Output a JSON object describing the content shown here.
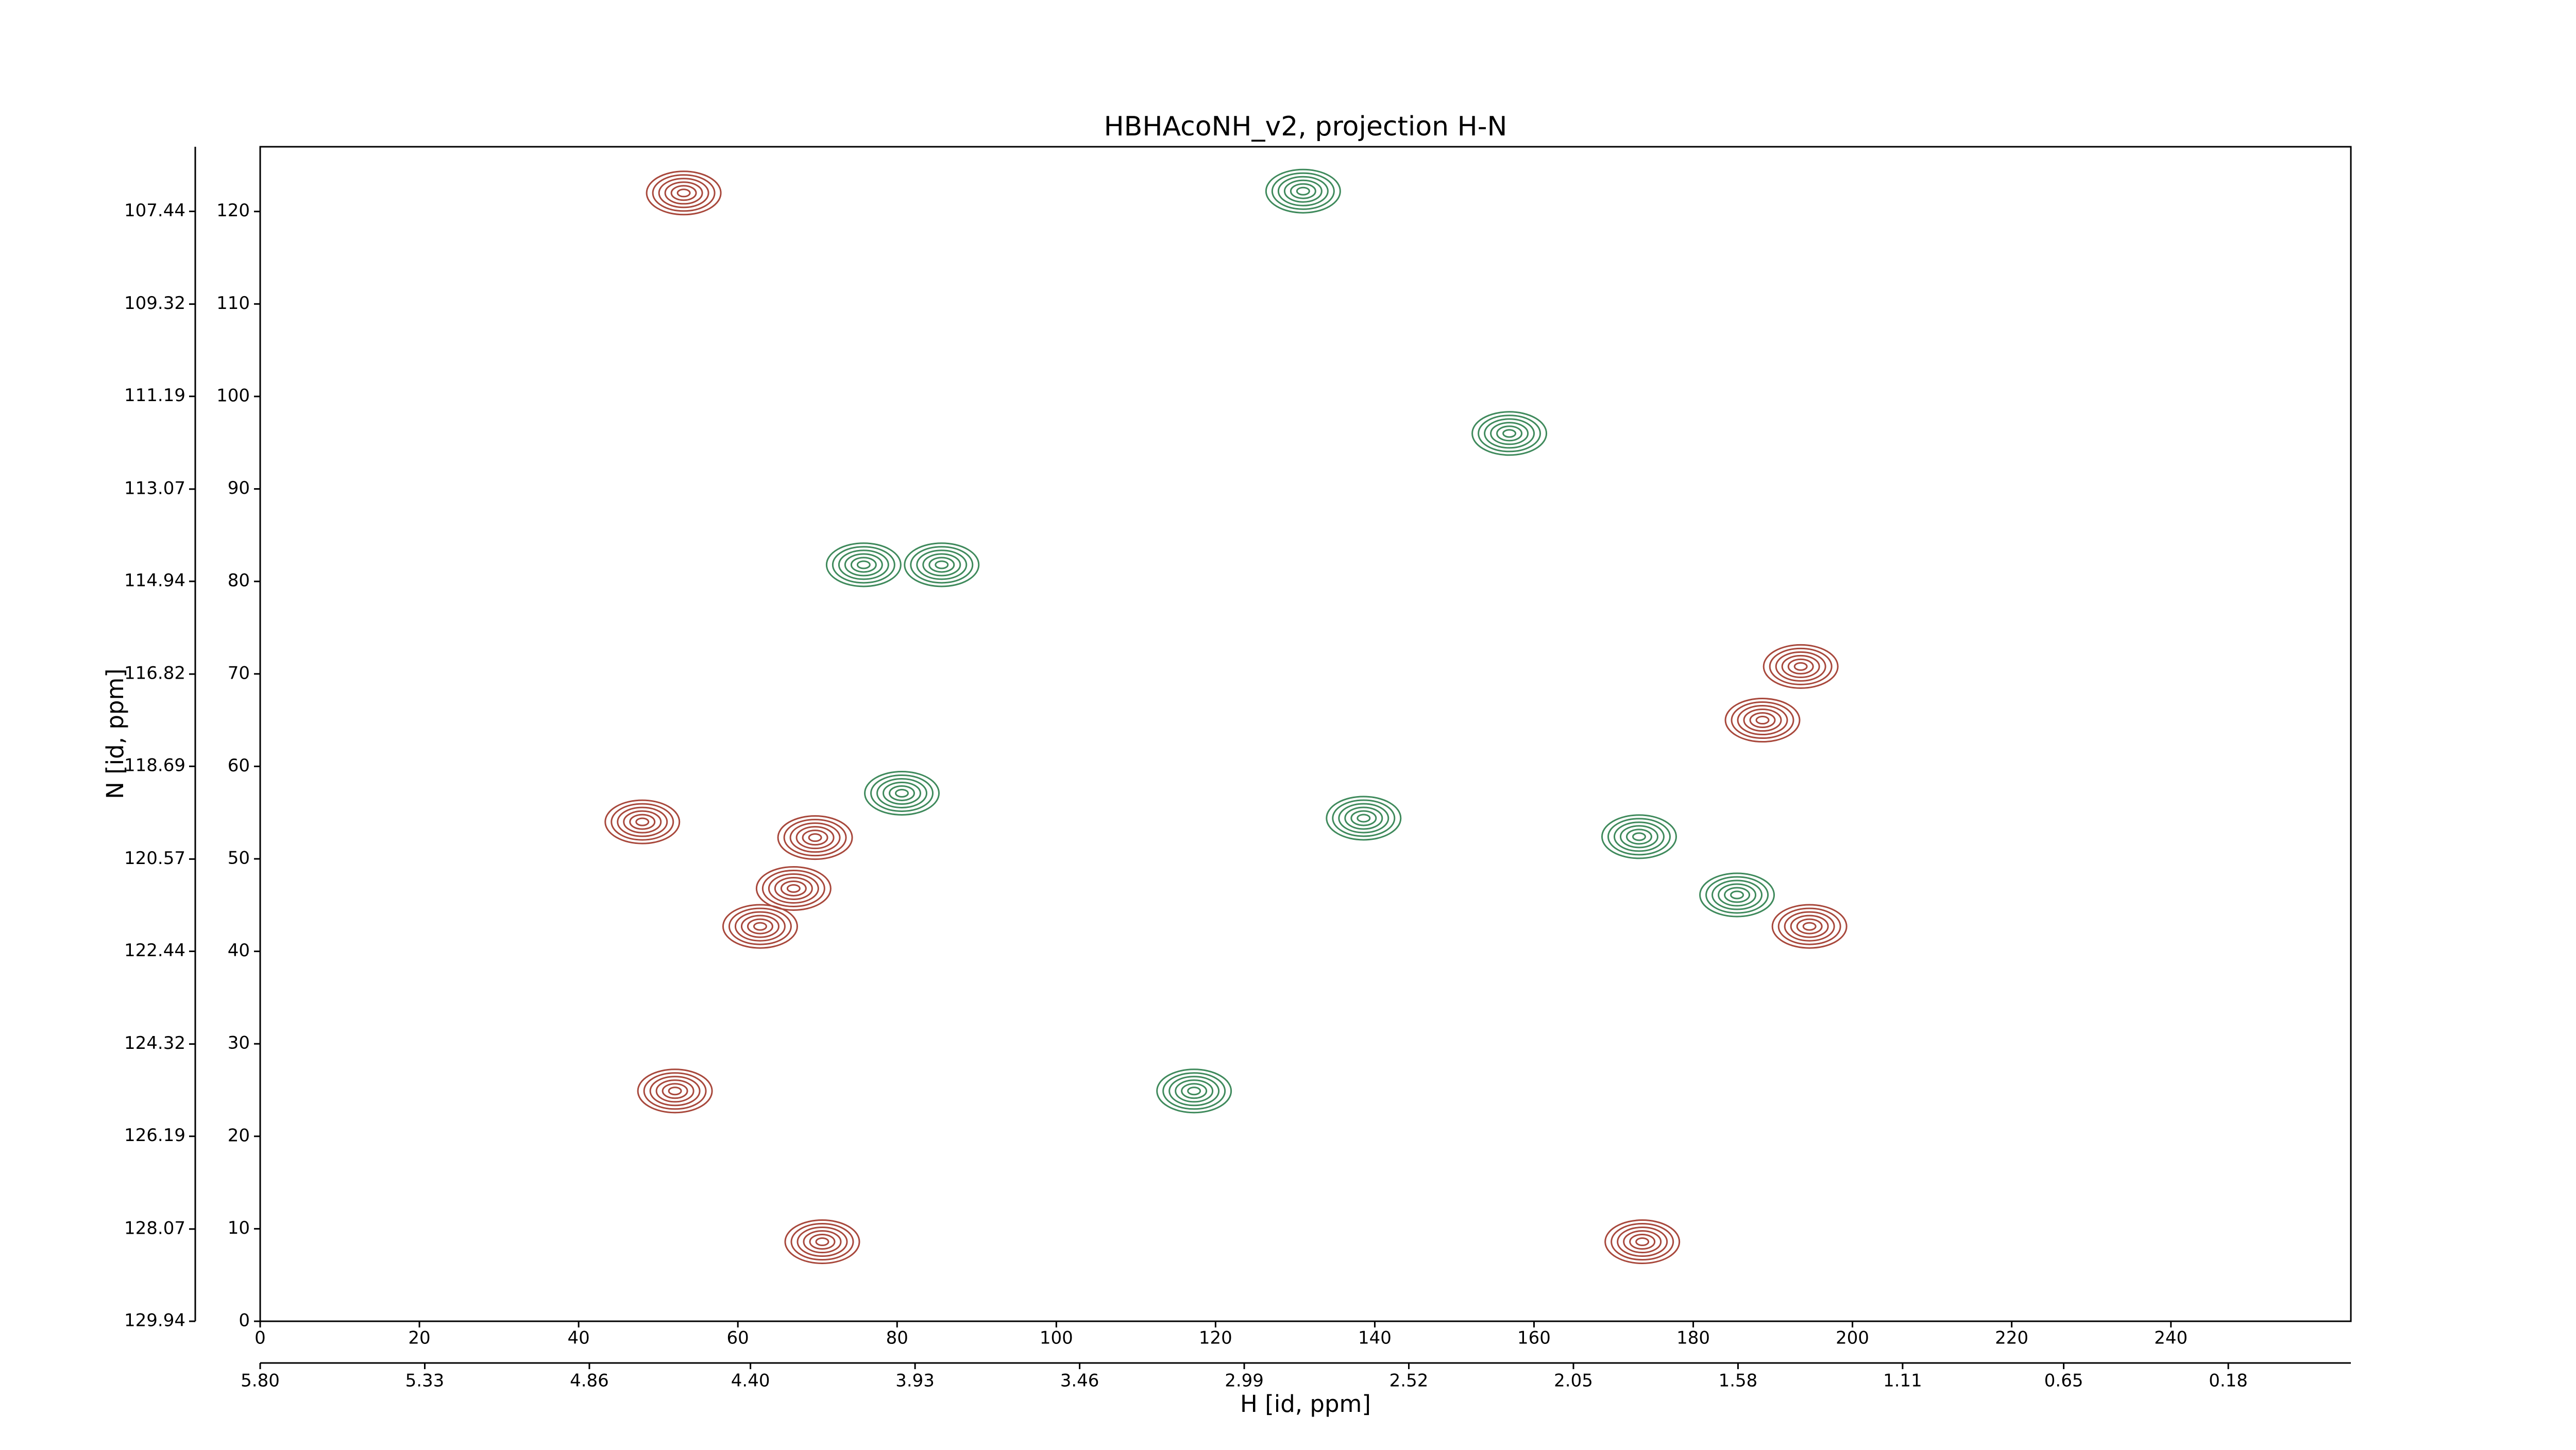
{
  "chart_data": {
    "type": "contour",
    "title": "HBHAcoNH_v2, projection H-N",
    "xlabel": "H [id, ppm]",
    "ylabel": "N [id, ppm]",
    "xlim": [
      0,
      262.6
    ],
    "ylim": [
      0,
      127
    ],
    "xticks": [
      0,
      20,
      40,
      60,
      80,
      100,
      120,
      140,
      160,
      180,
      200,
      220,
      240
    ],
    "yticks": [
      0,
      10,
      20,
      30,
      40,
      50,
      60,
      70,
      80,
      90,
      100,
      110,
      120
    ],
    "x2lim": [
      5.8,
      -0.17
    ],
    "x2ticks": [
      {
        "value": 5.8,
        "label": "5.80"
      },
      5.33,
      4.86,
      {
        "value": 4.4,
        "label": "4.40"
      },
      3.93,
      3.46,
      2.99,
      2.52,
      2.05,
      1.58,
      1.11,
      0.65,
      0.18
    ],
    "y2lim": [
      129.94,
      106.13
    ],
    "y2ticks": [
      129.94,
      128.07,
      126.19,
      124.32,
      122.44,
      120.57,
      118.69,
      116.82,
      114.94,
      113.07,
      111.19,
      109.32,
      107.44
    ],
    "series": [
      {
        "color": "#a8483c",
        "x": [
          52.1,
          67.0,
          62.8,
          69.7,
          70.6,
          194.6,
          173.6,
          53.2,
          48.0,
          188.7,
          193.5
        ],
        "y": [
          24.9,
          46.8,
          42.7,
          52.3,
          8.6,
          42.7,
          8.6,
          122.0,
          54.0,
          65.0,
          70.8
        ]
      },
      {
        "color": "#3f8a5c",
        "x": [
          185.5,
          173.2,
          117.3,
          131.0,
          80.6,
          75.8,
          85.6,
          156.9,
          138.6
        ],
        "y": [
          46.1,
          52.4,
          24.9,
          122.2,
          57.1,
          81.8,
          81.8,
          96.0,
          54.4
        ]
      }
    ]
  }
}
